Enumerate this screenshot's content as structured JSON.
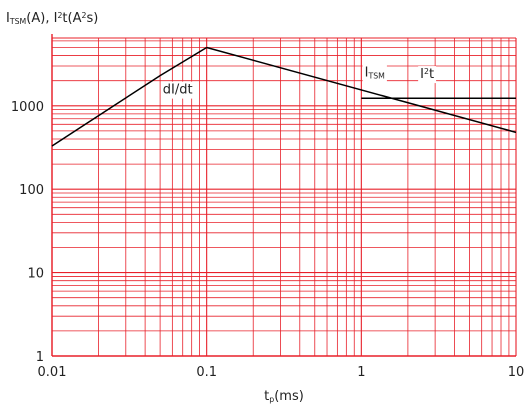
{
  "chart_data": {
    "type": "line",
    "title": "",
    "ylabel": {
      "parts": [
        {
          "text": "I",
          "sub": false,
          "sup": false
        },
        {
          "text": "TSM",
          "sub": true,
          "sup": false
        },
        {
          "text": "(A), I",
          "sub": false,
          "sup": false
        },
        {
          "text": "2",
          "sub": false,
          "sup": true
        },
        {
          "text": "t(A",
          "sub": false,
          "sup": false
        },
        {
          "text": "2",
          "sub": false,
          "sup": true
        },
        {
          "text": "s)",
          "sub": false,
          "sup": false
        }
      ]
    },
    "xlabel": {
      "parts": [
        {
          "text": "t",
          "sub": false
        },
        {
          "text": "p",
          "sub": true
        },
        {
          "text": "(ms)",
          "sub": false
        }
      ]
    },
    "x_scale": "log",
    "y_scale": "log",
    "xlim": [
      0.01,
      10
    ],
    "ylim": [
      1,
      6500
    ],
    "x_ticks": [
      {
        "value": 0.01,
        "label": "0.01"
      },
      {
        "value": 0.1,
        "label": "0.1"
      },
      {
        "value": 1,
        "label": "1"
      },
      {
        "value": 10,
        "label": "10"
      }
    ],
    "y_ticks": [
      {
        "value": 1,
        "label": "1"
      },
      {
        "value": 10,
        "label": "10"
      },
      {
        "value": 100,
        "label": "100"
      },
      {
        "value": 1000,
        "label": "1000"
      }
    ],
    "grid": true,
    "colors": {
      "grid": "#e8202a",
      "series": "#000000",
      "text": "#222222"
    },
    "series": [
      {
        "id": "dI_dt",
        "points": [
          [
            0.01,
            330
          ],
          [
            0.05,
            2300
          ],
          [
            0.1,
            5000
          ]
        ]
      },
      {
        "id": "I_TSM",
        "points": [
          [
            0.1,
            5000
          ],
          [
            10,
            480
          ]
        ]
      },
      {
        "id": "I2t",
        "points": [
          [
            1,
            1230
          ],
          [
            10,
            1230
          ]
        ]
      }
    ],
    "annotations": [
      {
        "id": "didt",
        "text": "dI/dt",
        "x": 0.052,
        "y": 1400
      },
      {
        "id": "itsm",
        "parts": [
          {
            "text": "I",
            "sub": false,
            "sup": false
          },
          {
            "text": "TSM",
            "sub": true,
            "sup": false
          }
        ],
        "x": 1.05,
        "y": 2250
      },
      {
        "id": "i2t",
        "parts": [
          {
            "text": "I",
            "sub": false,
            "sup": false
          },
          {
            "text": "2",
            "sub": false,
            "sup": true
          },
          {
            "text": "t",
            "sub": false,
            "sup": false
          }
        ],
        "x": 2.4,
        "y": 2150
      }
    ]
  }
}
